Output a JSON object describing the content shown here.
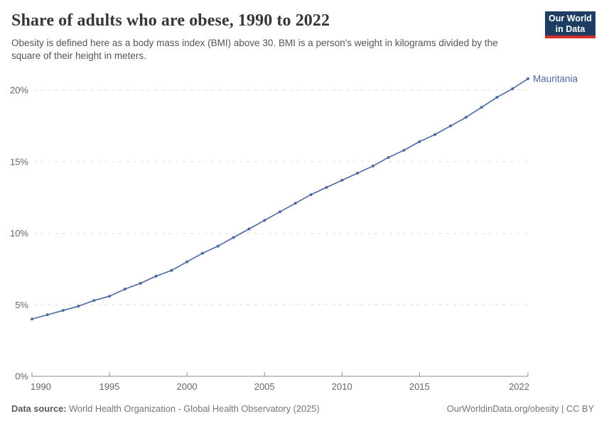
{
  "header": {
    "title": "Share of adults who are obese, 1990 to 2022",
    "subtitle": "Obesity is defined here as a body mass index (BMI) above 30. BMI is a person's weight in kilograms divided by the square of their height in meters.",
    "logo": {
      "line1": "Our World",
      "line2": "in Data"
    }
  },
  "footer": {
    "source_label": "Data source:",
    "source_text": " World Health Organization - Global Health Observatory (2025)",
    "citation": "OurWorldinData.org/obesity | CC BY"
  },
  "colors": {
    "accent": "#4c6aa2",
    "logo_bg": "#1d3d63",
    "logo_red": "#d42b2b",
    "grid": "#e0e0e0",
    "axis": "#8f8f8f",
    "tick_text": "#666666"
  },
  "chart_data": {
    "type": "line",
    "title": "Share of adults who are obese, 1990 to 2022",
    "series": [
      {
        "name": "Mauritania",
        "color": "#4c6aa2",
        "x": [
          1990,
          1991,
          1992,
          1993,
          1994,
          1995,
          1996,
          1997,
          1998,
          1999,
          2000,
          2001,
          2002,
          2003,
          2004,
          2005,
          2006,
          2007,
          2008,
          2009,
          2010,
          2011,
          2012,
          2013,
          2014,
          2015,
          2016,
          2017,
          2018,
          2019,
          2020,
          2021,
          2022
        ],
        "values": [
          4.0,
          4.3,
          4.6,
          4.9,
          5.3,
          5.6,
          6.1,
          6.5,
          7.0,
          7.4,
          8.0,
          8.6,
          9.1,
          9.7,
          10.3,
          10.9,
          11.5,
          12.1,
          12.7,
          13.2,
          13.7,
          14.2,
          14.7,
          15.3,
          15.8,
          16.4,
          16.9,
          17.5,
          18.1,
          18.8,
          19.5,
          20.1,
          20.8
        ]
      }
    ],
    "unit": "%",
    "xlabel": "",
    "ylabel": "",
    "x_ticks": [
      1990,
      1995,
      2000,
      2005,
      2010,
      2015,
      2022
    ],
    "y_ticks": [
      0,
      5,
      10,
      15,
      20
    ],
    "y_tick_suffix": "%",
    "xlim": [
      1990,
      2022
    ],
    "ylim": [
      0,
      21
    ],
    "grid": "dashed horizontal",
    "legend_position": "end-of-line label"
  }
}
